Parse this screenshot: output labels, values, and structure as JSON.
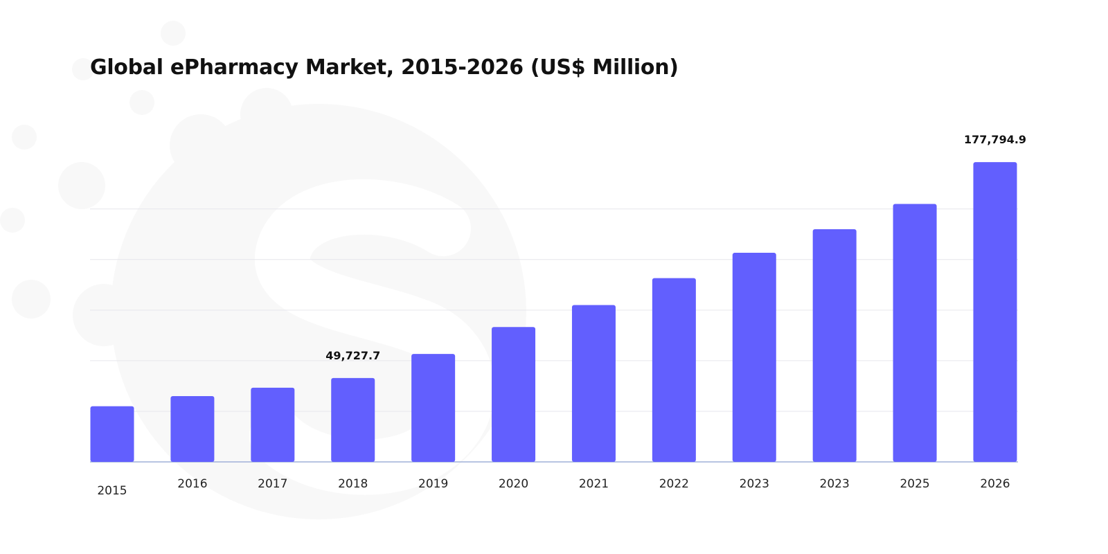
{
  "chart_data": {
    "type": "bar",
    "title": "Global ePharmacy Market, 2015-2026 (US$ Million)",
    "xlabel": "",
    "ylabel": "",
    "categories": [
      "2015",
      "2016",
      "2017",
      "2018",
      "2019",
      "2020",
      "2021",
      "2022",
      "2023",
      "2023",
      "2025",
      "2026"
    ],
    "values": [
      33000,
      39000,
      44000,
      49727.7,
      64000,
      80000,
      93000,
      109000,
      124000,
      138000,
      153000,
      177794.9
    ],
    "data_labels": [
      {
        "index": 3,
        "text": "49,727.7"
      },
      {
        "index": 11,
        "text": "177,794.9"
      }
    ],
    "ylim": [
      0,
      200000
    ],
    "gridlines": [
      30000,
      60000,
      90000,
      120000,
      150000
    ],
    "grid": true,
    "legend": false,
    "colors": {
      "bar": "#625ffe",
      "grid": "#e6e6ec",
      "baseline": "#9fb0d8"
    }
  }
}
